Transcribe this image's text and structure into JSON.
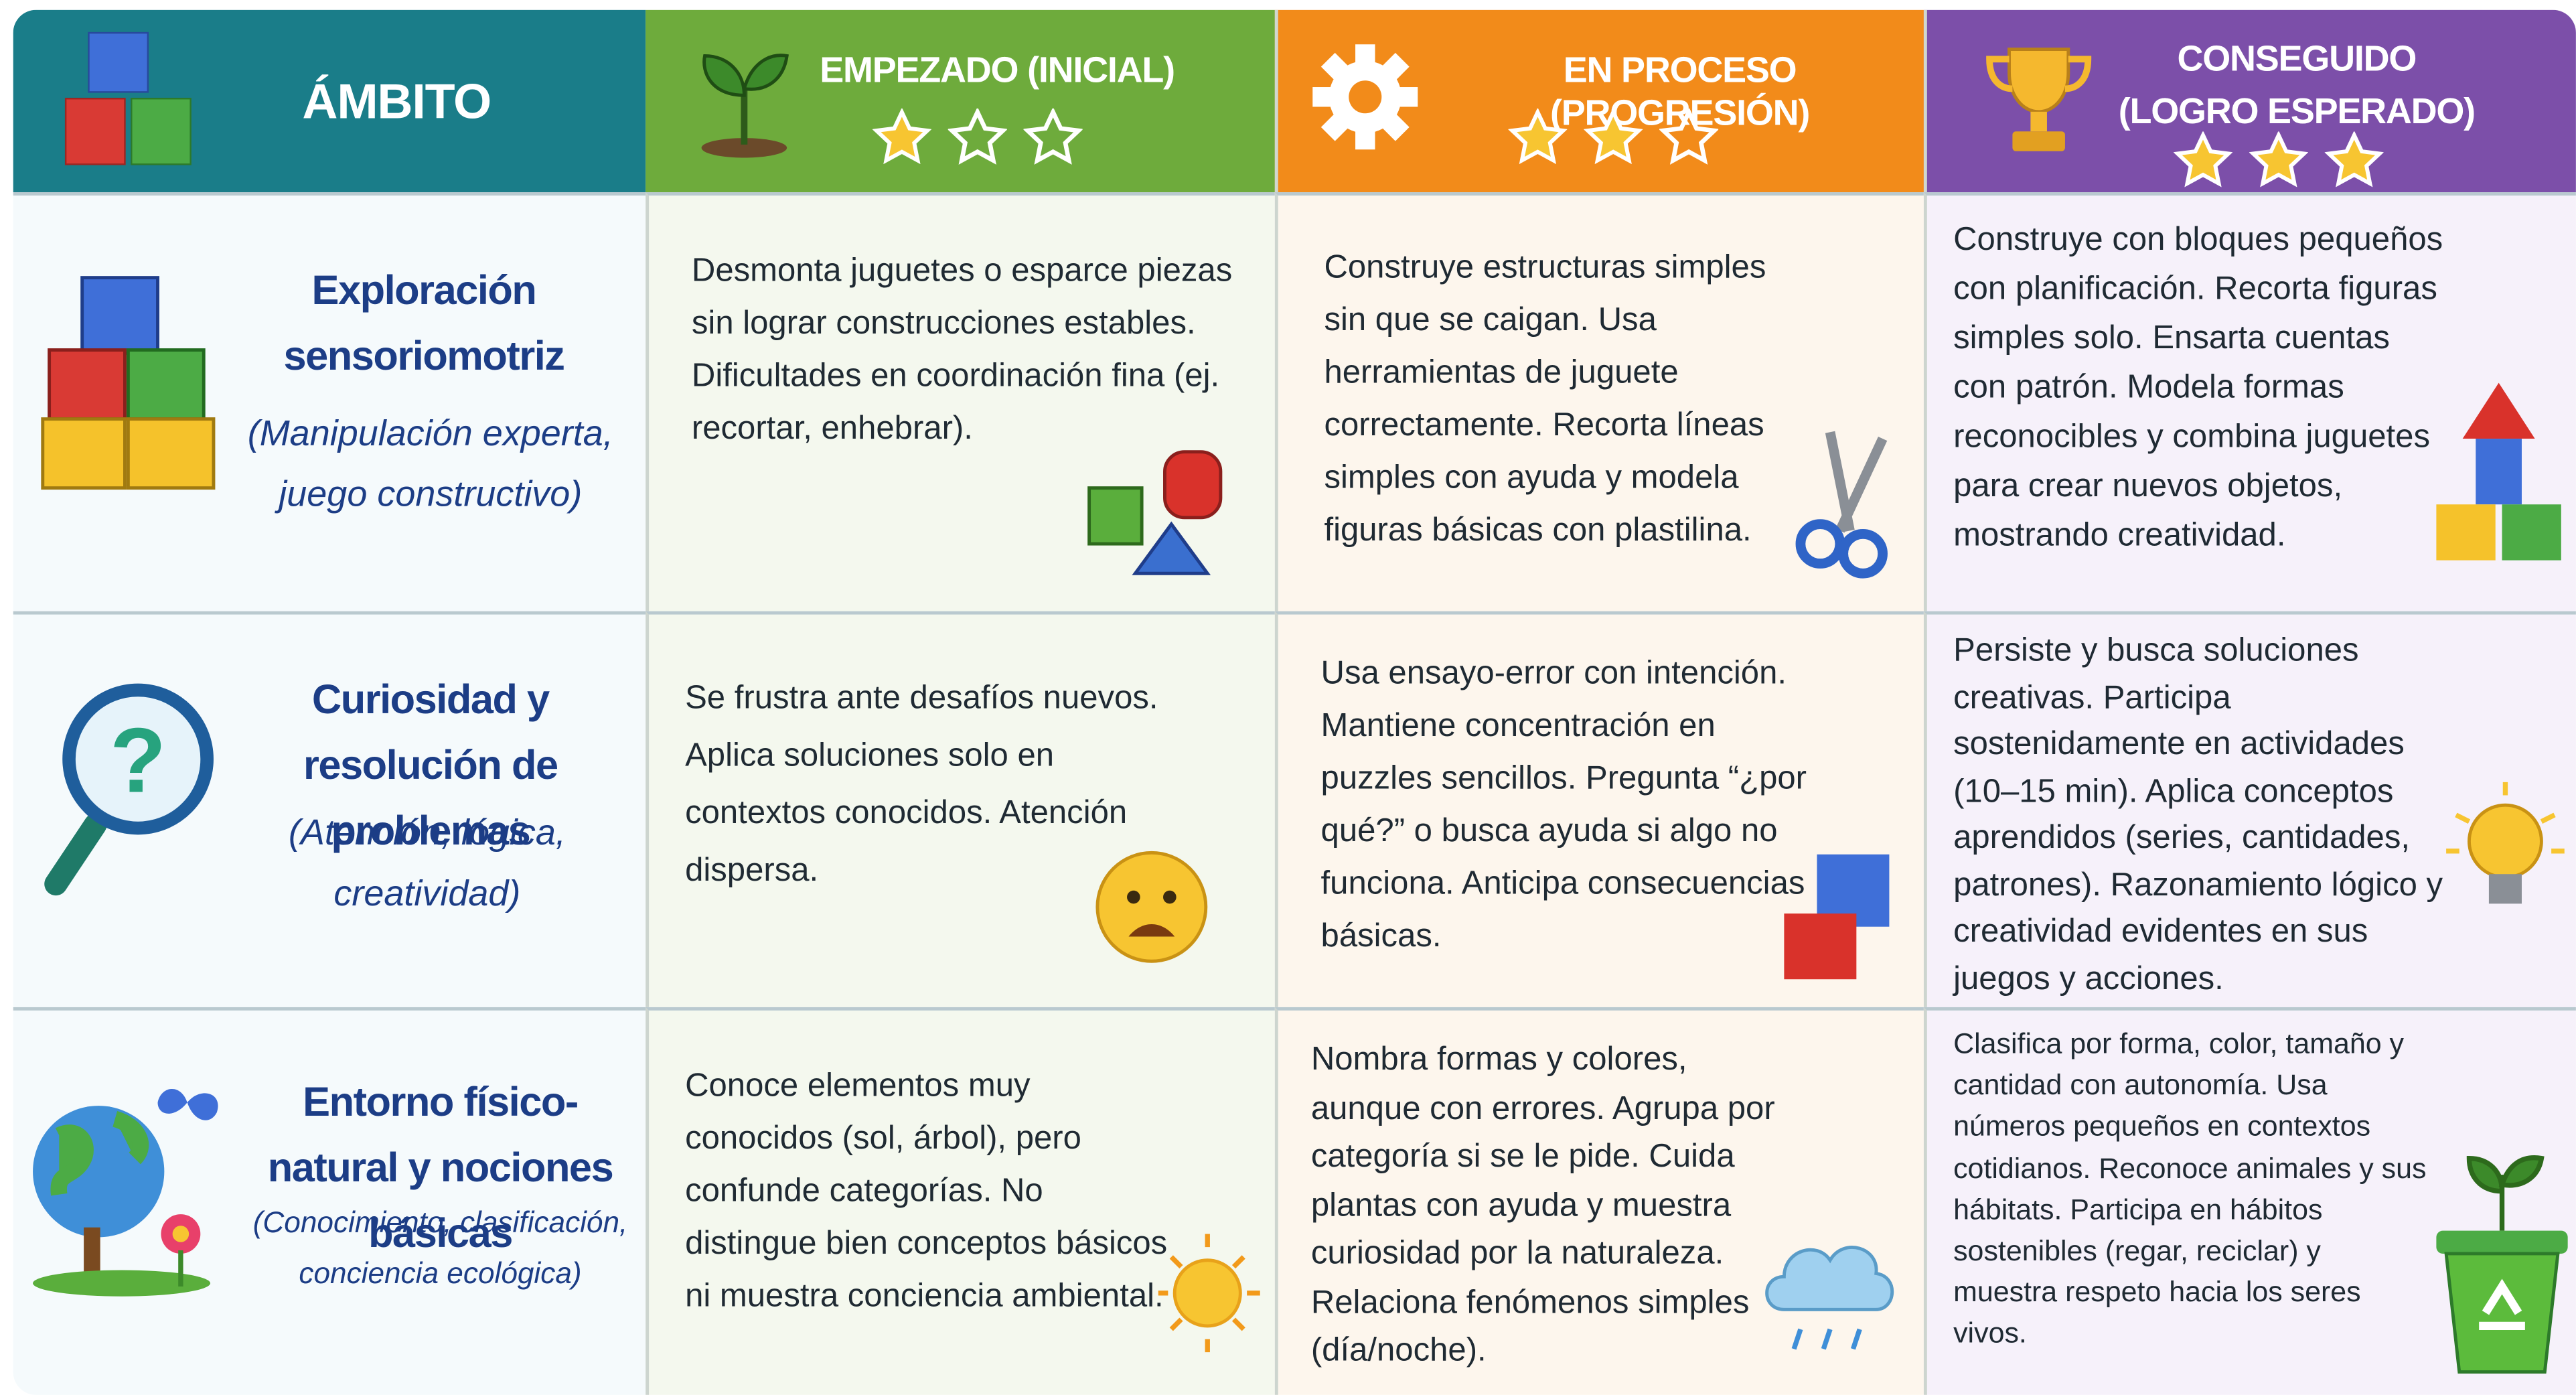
{
  "header": {
    "columns": [
      {
        "title": "ÁMBITO"
      },
      {
        "title": "EMPEZADO (INICIAL)"
      },
      {
        "title": "EN PROCESO (PROGRESIÓN)"
      },
      {
        "title": "CONSEGUIDO (LOGRO ESPERADO)"
      }
    ]
  },
  "rows": [
    {
      "title": "Exploración sensoriomotriz",
      "subtitle": "(Manipulación experta, juego constructivo)",
      "cells": [
        "Desmonta juguetes o esparce piezas sin lograr construcciones estables. Dificultades en coordinación fina (ej. recortar, enhebrar).",
        "Construye estructuras simples sin que se caigan. Usa herramientas de juguete correctamente. Recorta líneas simples con ayuda y modela figuras básicas con plastilina.",
        "Construye con bloques pequeños con planificación. Recorta figuras simples solo. Ensarta cuentas con patrón. Modela formas reconocibles y combina juguetes para crear nuevos objetos, mostrando creatividad."
      ]
    },
    {
      "title": "Curiosidad y resolución de problemas",
      "subtitle": "(Atención, lógica, creatividad)",
      "cells": [
        "Se frustra ante desafíos nuevos. Aplica soluciones solo en contextos conocidos. Atención dispersa.",
        "Usa ensayo-error con intención. Mantiene concentración en puzzles sencillos. Pregunta “¿por qué?” o busca ayuda si algo no funciona. Anticipa consecuencias básicas.",
        "Persiste y busca soluciones creativas. Participa sostenidamente en actividades (10–15 min). Aplica conceptos aprendidos (series, cantidades, patrones). Razonamiento lógico y creatividad evidentes en sus juegos y acciones."
      ]
    },
    {
      "title": "Entorno físico-natural y nociones básicas",
      "subtitle": "(Conocimiento, clasificación, conciencia ecológica)",
      "cells": [
        "Conoce elementos muy conocidos (sol, árbol), pero confunde categorías. No distingue bien conceptos básicos ni muestra conciencia ambiental.",
        "Nombra formas y colores, aunque con errores. Agrupa por categoría si se le pide. Cuida plantas con ayuda y muestra curiosidad por la naturaleza. Relaciona fenómenos simples (día/noche).",
        "Clasifica por forma, color, tamaño y cantidad con autonomía. Usa números pequeños en contextos cotidianos. Reconoce animales y sus hábitats. Participa en hábitos sostenibles (regar, reciclar) y muestra respeto hacia los seres vivos."
      ]
    }
  ]
}
